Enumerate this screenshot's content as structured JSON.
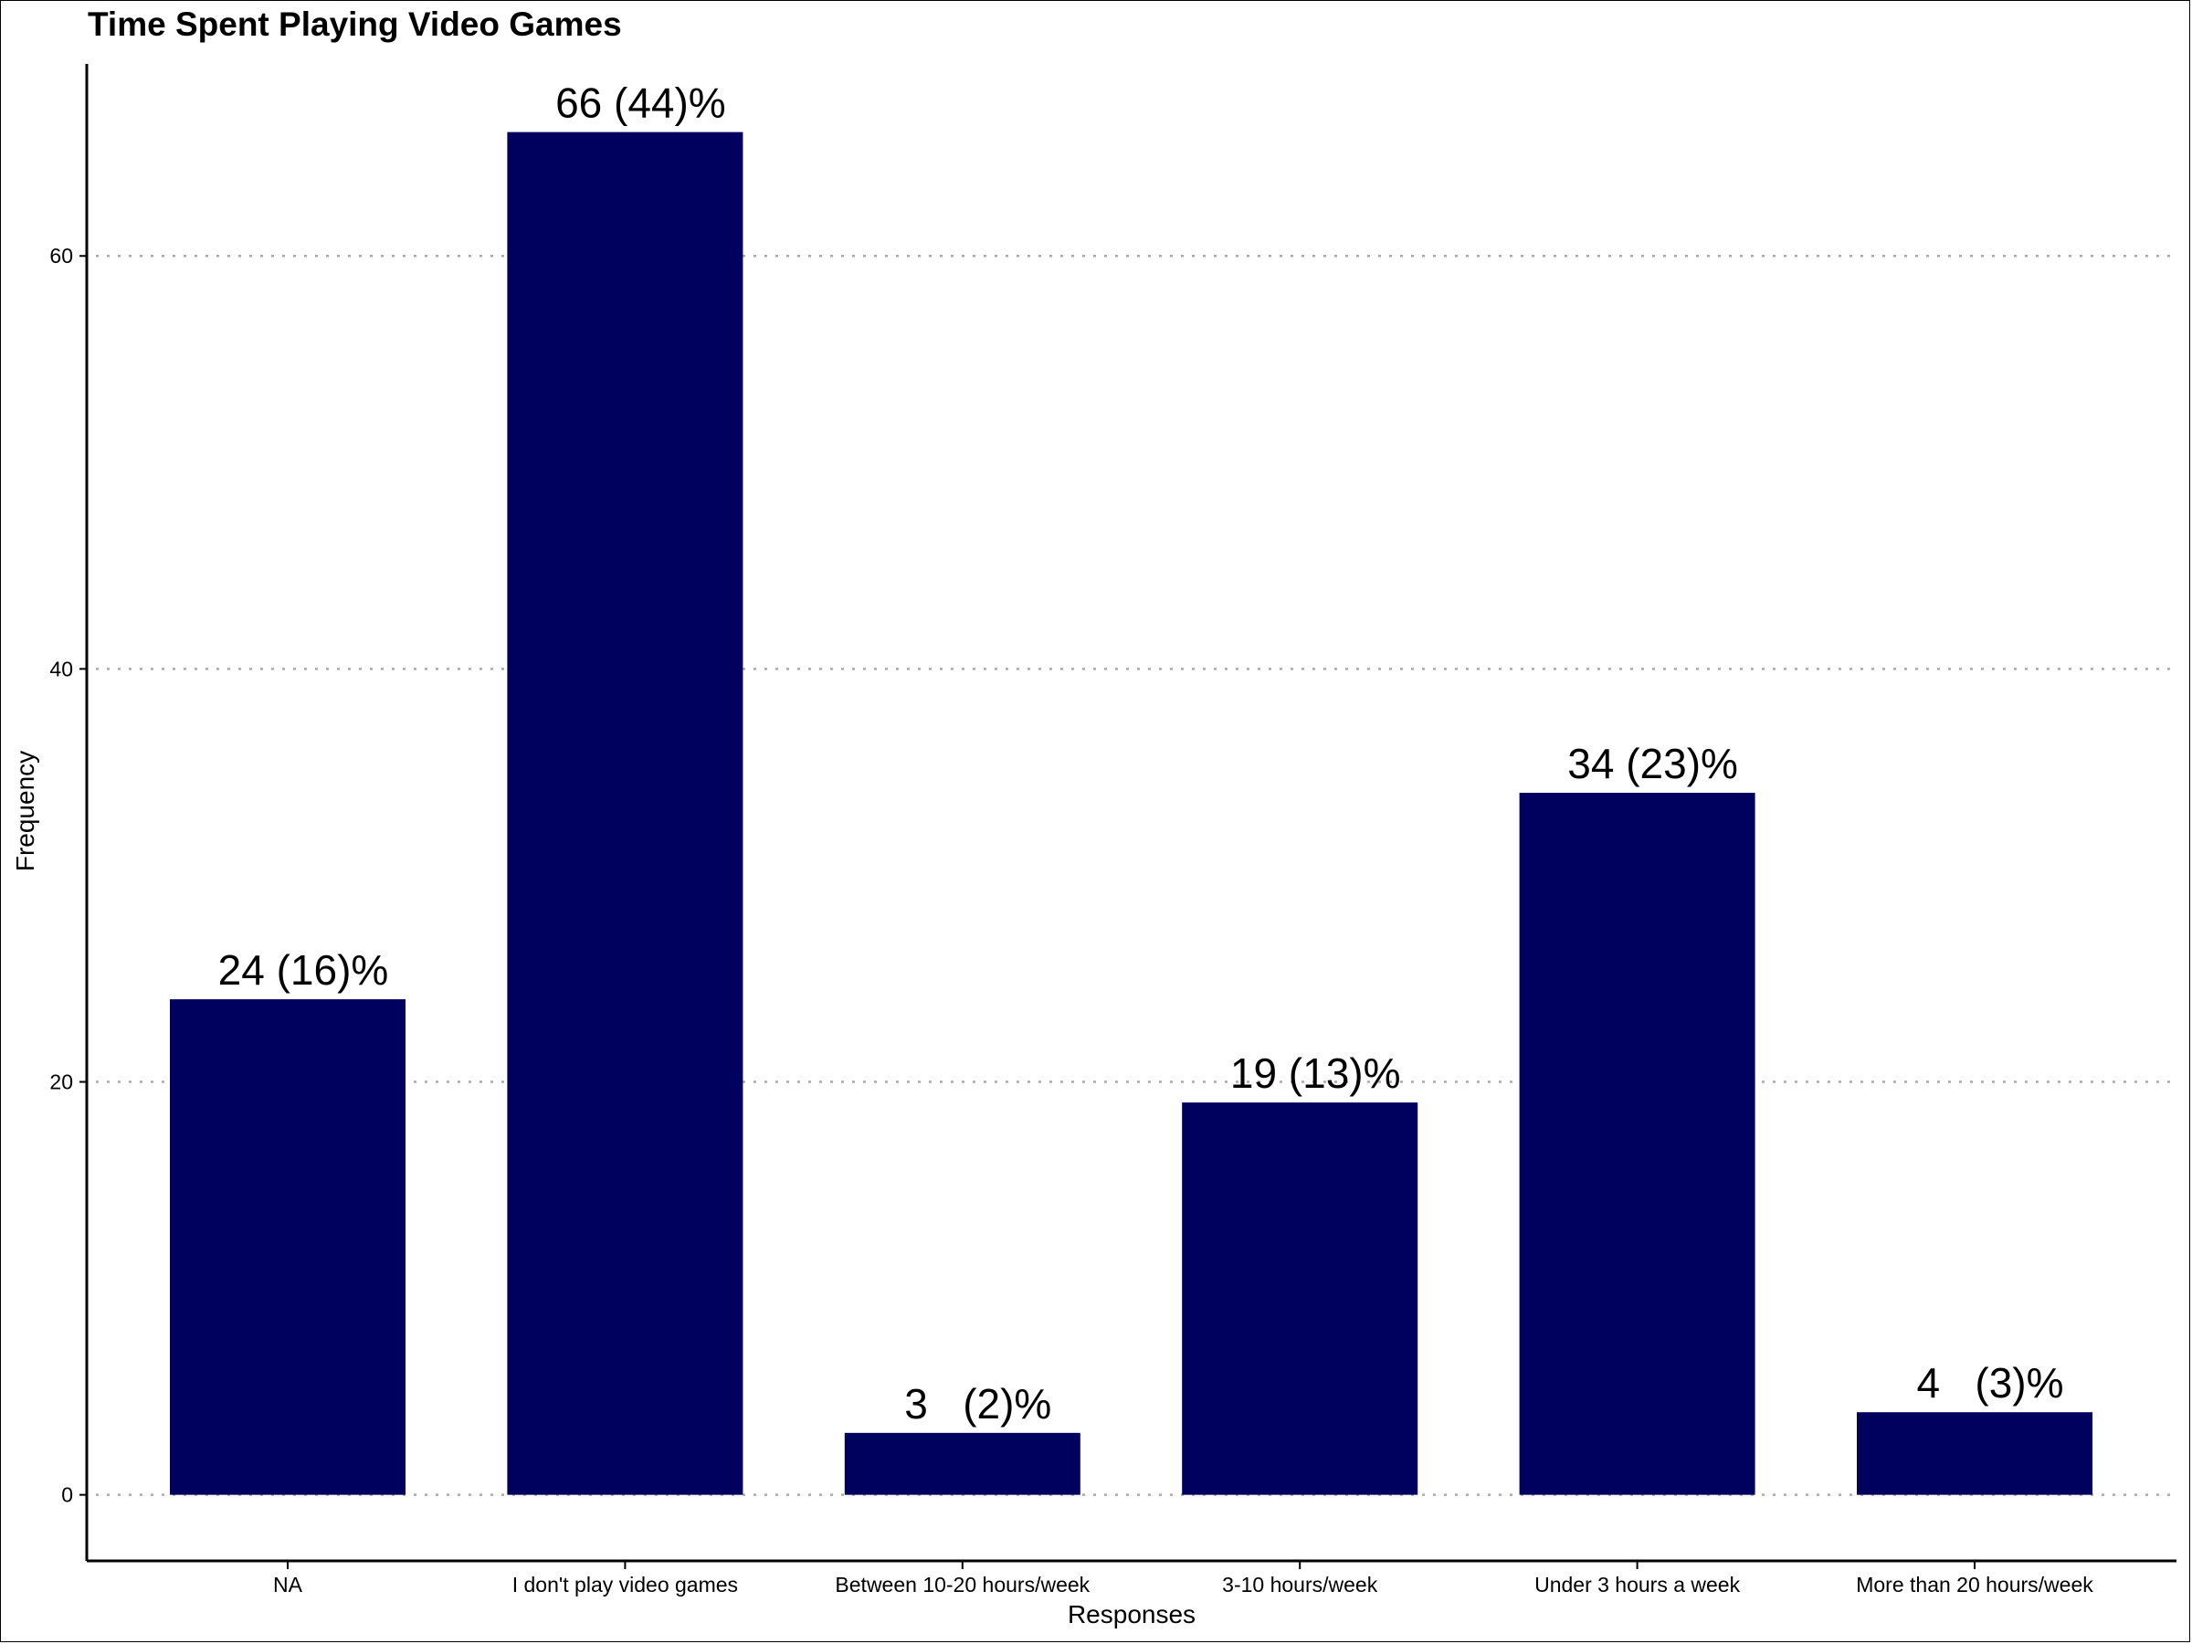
{
  "chart_data": {
    "type": "bar",
    "title": "Time Spent Playing Video Games",
    "xlabel": "Responses",
    "ylabel": "Frequency",
    "categories": [
      "NA",
      "I don't play video games",
      "Between 10-20 hours/week",
      "3-10 hours/week",
      "Under 3 hours a week",
      "More than 20 hours/week"
    ],
    "values": [
      24,
      66,
      3,
      19,
      34,
      4
    ],
    "data_labels": [
      "24 (16)%",
      "66 (44)%",
      "3   (2)%",
      "19 (13)%",
      "34 (23)%",
      "4   (3)%"
    ],
    "yticks": [
      0,
      20,
      40,
      60
    ],
    "ylim": [
      -3.2,
      69.3
    ],
    "grid": "horizontal dotted",
    "legend": "none",
    "colors": {
      "bar": "#00005E",
      "grid": "#AAAAAA",
      "axis": "#000000"
    }
  }
}
